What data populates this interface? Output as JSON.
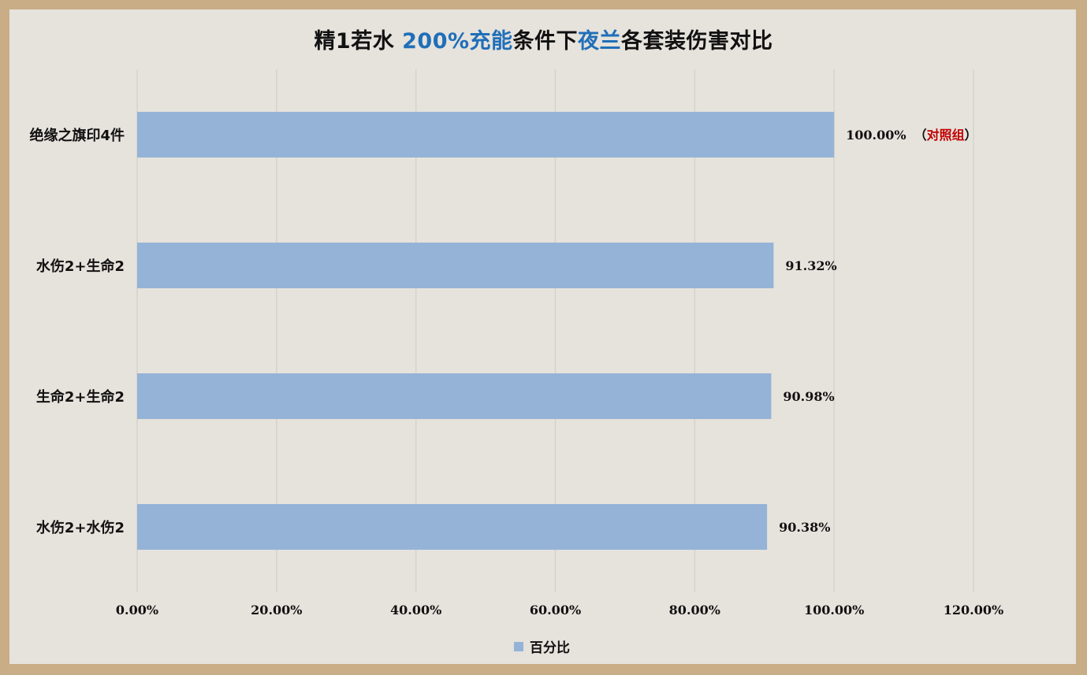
{
  "title": {
    "part1": "精1若水 ",
    "part2": "200%充能",
    "part3": "条件下",
    "part4": "夜兰",
    "part5": "各套装伤害对比"
  },
  "colors": {
    "bar": "#95b3d7",
    "highlight": "#1f6fb8",
    "control_label": "#c00000",
    "grid": "#d4d0ca"
  },
  "chart_data": {
    "type": "bar",
    "orientation": "horizontal",
    "categories": [
      "绝缘之旗印4件",
      "水伤2+生命2",
      "生命2+生命2",
      "水伤2+水伤2"
    ],
    "series": [
      {
        "name": "百分比",
        "values": [
          100.0,
          91.32,
          90.98,
          90.38
        ]
      }
    ],
    "data_labels": [
      "100.00%",
      "91.32%",
      "90.98%",
      "90.38%"
    ],
    "annotation": {
      "prefix": "（",
      "text": "对照组",
      "suffix": "）"
    },
    "x_ticks": [
      "0.00%",
      "20.00%",
      "40.00%",
      "60.00%",
      "80.00%",
      "100.00%",
      "120.00%"
    ],
    "xlim": [
      0,
      120
    ],
    "grid": true,
    "legend": "bottom"
  }
}
